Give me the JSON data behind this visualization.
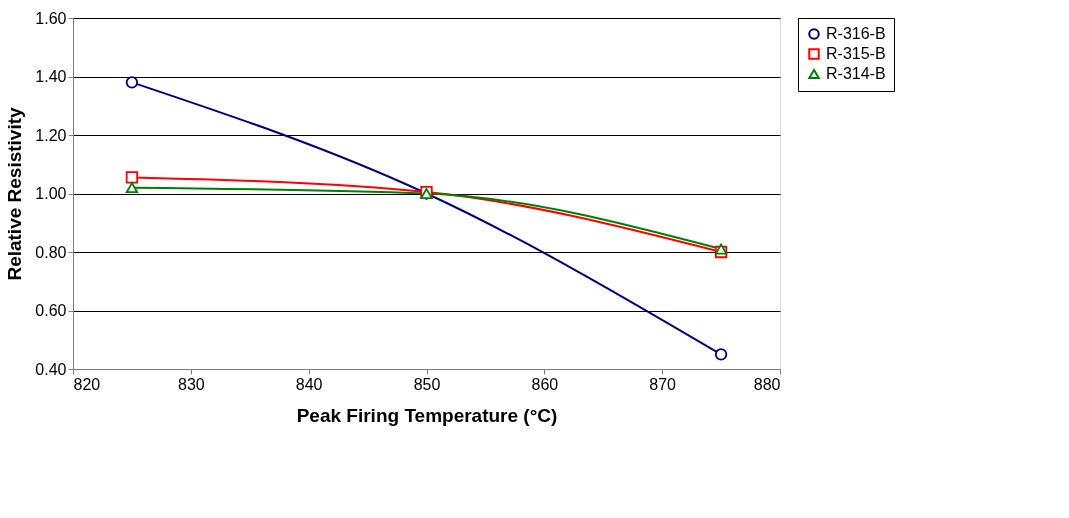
{
  "chart_data": {
    "type": "line",
    "xlabel": "Peak Firing Temperature (°C)",
    "ylabel": "Relative Resistivity",
    "x": [
      825,
      850,
      875
    ],
    "series": [
      {
        "name": "R-316-B",
        "color": "#000080",
        "marker": "circle",
        "values": [
          1.38,
          1.0,
          0.45
        ]
      },
      {
        "name": "R-315-B",
        "color": "#ff0000",
        "marker": "square",
        "values": [
          1.055,
          1.005,
          0.8
        ]
      },
      {
        "name": "R-314-B",
        "color": "#008000",
        "marker": "triangle",
        "values": [
          1.02,
          1.0,
          0.81
        ]
      }
    ],
    "xlim": [
      820,
      880
    ],
    "xticks": [
      820,
      830,
      840,
      850,
      860,
      870,
      880
    ],
    "ylim": [
      0.4,
      1.6
    ],
    "yticks": [
      {
        "value": 0.4,
        "label": "0.40"
      },
      {
        "value": 0.6,
        "label": "0.60"
      },
      {
        "value": 0.8,
        "label": "0.80"
      },
      {
        "value": 1.0,
        "label": "1.00"
      },
      {
        "value": 1.2,
        "label": "1.20"
      },
      {
        "value": 1.4,
        "label": "1.40"
      },
      {
        "value": 1.6,
        "label": "1.60"
      }
    ],
    "grid": "y",
    "legend": "right",
    "line_style": "solid"
  }
}
